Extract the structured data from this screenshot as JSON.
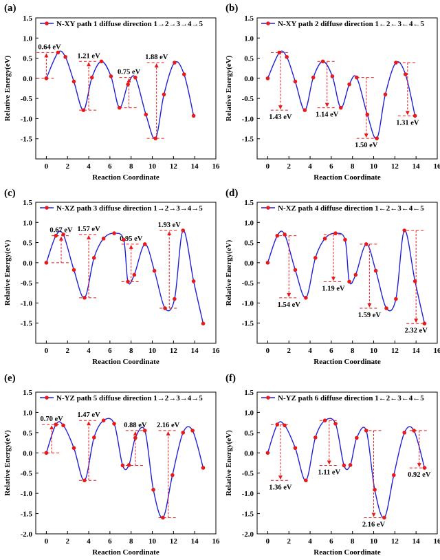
{
  "panels": [
    {
      "letter": "(a)",
      "legend": "N-XY path 1 diffuse direction 1→2→3→4→5"
    },
    {
      "letter": "(b)",
      "legend": "N-XY path 2 diffuse direction 1←2←3←4←5"
    },
    {
      "letter": "(c)",
      "legend": "N-XZ path 3 diffuse direction 1→2→3→4→5"
    },
    {
      "letter": "(d)",
      "legend": "N-XZ path 4 diffuse direction 1←2←3←4←5"
    },
    {
      "letter": "(e)",
      "legend": "N-YZ path 5 diffuse direction 1→2→3→4→5"
    },
    {
      "letter": "(f)",
      "legend": "N-YZ path 6 diffuse direction 1←2←3←4←5"
    }
  ],
  "colors": {
    "line": "#1f1fd6",
    "marker": "#e8191a",
    "annotation": "#e8191a",
    "axis": "#000000"
  },
  "chart_data": [
    {
      "type": "line",
      "legend": "N-XY path 1 diffuse direction 1→2→3→4→5",
      "xlabel": "Reaction Coordinate",
      "ylabel": "Relative Energy(eV)",
      "xlim": [
        -1,
        16
      ],
      "ylim": [
        -2.0,
        1.5
      ],
      "x_ticks": [
        0,
        2,
        4,
        6,
        8,
        10,
        12,
        14,
        16
      ],
      "y_ticks": [
        -1.5,
        -1.0,
        -0.5,
        0.0,
        0.5,
        1.0,
        1.5
      ],
      "points": {
        "x": [
          0,
          1.1,
          1.8,
          2.6,
          3.5,
          4.3,
          5.2,
          6.1,
          6.9,
          7.7,
          8.4,
          9.4,
          10.3,
          11.1,
          12.1,
          13.0,
          13.9
        ],
        "y": [
          0.0,
          0.64,
          0.53,
          -0.08,
          -0.79,
          0.02,
          0.42,
          0.05,
          -0.73,
          -0.15,
          0.02,
          -0.9,
          -1.49,
          -0.4,
          0.39,
          0.1,
          -0.93
        ]
      },
      "annotations": [
        {
          "label": "0.64 eV",
          "x": 0.0,
          "from": 0.0,
          "to": 0.64,
          "dir": "up"
        },
        {
          "label": "1.21 eV",
          "x": 4.0,
          "from": -0.79,
          "to": 0.42,
          "dir": "up"
        },
        {
          "label": "0.75 eV",
          "x": 7.8,
          "from": -0.73,
          "to": 0.02,
          "dir": "up"
        },
        {
          "label": "1.88 eV",
          "x": 10.4,
          "from": -1.49,
          "to": 0.39,
          "dir": "up"
        }
      ]
    },
    {
      "type": "line",
      "legend": "N-XY path 2 diffuse direction 1←2←3←4←5",
      "xlabel": "Reaction Coordinate",
      "ylabel": "Relative Energy(eV)",
      "xlim": [
        -1,
        16
      ],
      "ylim": [
        -2.0,
        1.5
      ],
      "x_ticks": [
        0,
        2,
        4,
        6,
        8,
        10,
        12,
        14,
        16
      ],
      "y_ticks": [
        -1.5,
        -1.0,
        -0.5,
        0.0,
        0.5,
        1.0,
        1.5
      ],
      "points": {
        "x": [
          0,
          1.1,
          1.8,
          2.6,
          3.5,
          4.3,
          5.2,
          6.1,
          6.9,
          7.7,
          8.4,
          9.4,
          10.3,
          11.1,
          12.1,
          13.0,
          13.9
        ],
        "y": [
          0.0,
          0.64,
          0.53,
          -0.08,
          -0.79,
          0.02,
          0.42,
          0.05,
          -0.73,
          -0.15,
          0.02,
          -0.9,
          -1.49,
          -0.4,
          0.39,
          0.1,
          -0.93
        ]
      },
      "annotations": [
        {
          "label": "1.43 eV",
          "x": 1.2,
          "from": 0.64,
          "to": -0.79,
          "dir": "down"
        },
        {
          "label": "1.14 eV",
          "x": 5.6,
          "from": 0.42,
          "to": -0.73,
          "dir": "down"
        },
        {
          "label": "1.50 eV",
          "x": 9.3,
          "from": 0.02,
          "to": -1.49,
          "dir": "down"
        },
        {
          "label": "1.31 eV",
          "x": 13.2,
          "from": 0.39,
          "to": -0.93,
          "dir": "down"
        }
      ]
    },
    {
      "type": "line",
      "legend": "N-XZ path 3 diffuse direction 1→2→3→4→5",
      "xlabel": "Reaction Coordinate",
      "ylabel": "Relative Energy(eV)",
      "xlim": [
        -1,
        16
      ],
      "ylim": [
        -2.0,
        1.5
      ],
      "x_ticks": [
        0,
        2,
        4,
        6,
        8,
        10,
        12,
        14,
        16
      ],
      "y_ticks": [
        -1.5,
        -1.0,
        -0.5,
        0.0,
        0.5,
        1.0,
        1.5
      ],
      "points": {
        "x": [
          0,
          0.9,
          1.6,
          2.6,
          3.6,
          4.5,
          5.4,
          6.4,
          7.3,
          7.7,
          8.3,
          9.3,
          10.2,
          11.2,
          12.1,
          12.9,
          13.9,
          14.8
        ],
        "y": [
          0.0,
          0.67,
          0.7,
          -0.18,
          -0.87,
          0.12,
          0.6,
          0.73,
          0.57,
          -0.47,
          -0.3,
          0.46,
          -0.2,
          -1.13,
          -0.9,
          0.8,
          -0.46,
          -1.51
        ]
      },
      "annotations": [
        {
          "label": "0.67 eV",
          "x": 1.4,
          "from": 0.0,
          "to": 0.67,
          "dir": "up"
        },
        {
          "label": "1.57 eV",
          "x": 4.0,
          "from": -0.87,
          "to": 0.7,
          "dir": "up"
        },
        {
          "label": "0.95 eV",
          "x": 8.0,
          "from": -0.47,
          "to": 0.46,
          "dir": "up"
        },
        {
          "label": "1.93 eV",
          "x": 11.6,
          "from": -1.13,
          "to": 0.8,
          "dir": "up"
        }
      ]
    },
    {
      "type": "line",
      "legend": "N-XZ path 4 diffuse direction 1←2←3←4←5",
      "xlabel": "Reaction Coordinate",
      "ylabel": "Relative Energy(eV)",
      "xlim": [
        -1,
        16
      ],
      "ylim": [
        -2.0,
        1.5
      ],
      "x_ticks": [
        0,
        2,
        4,
        6,
        8,
        10,
        12,
        14,
        16
      ],
      "y_ticks": [
        -1.5,
        -1.0,
        -0.5,
        0.0,
        0.5,
        1.0,
        1.5
      ],
      "points": {
        "x": [
          0,
          0.9,
          1.6,
          2.6,
          3.6,
          4.5,
          5.4,
          6.4,
          7.3,
          7.7,
          8.3,
          9.3,
          10.2,
          11.2,
          12.1,
          12.9,
          13.9,
          14.8
        ],
        "y": [
          0.0,
          0.67,
          0.7,
          -0.18,
          -0.87,
          0.12,
          0.6,
          0.73,
          0.57,
          -0.47,
          -0.3,
          0.46,
          -0.2,
          -1.13,
          -0.9,
          0.8,
          -0.46,
          -1.51
        ]
      },
      "annotations": [
        {
          "label": "1.54 eV",
          "x": 2.0,
          "from": 0.67,
          "to": -0.87,
          "dir": "down"
        },
        {
          "label": "1.19 eV",
          "x": 6.2,
          "from": 0.7,
          "to": -0.47,
          "dir": "down"
        },
        {
          "label": "1.59 eV",
          "x": 9.6,
          "from": 0.46,
          "to": -1.13,
          "dir": "down"
        },
        {
          "label": "2.32 eV",
          "x": 14.0,
          "from": 0.8,
          "to": -1.51,
          "dir": "down"
        }
      ]
    },
    {
      "type": "line",
      "legend": "N-YZ path 5 diffuse direction 1→2→3→4→5",
      "xlabel": "Reaction Coordinate",
      "ylabel": "Relative Energy(eV)",
      "xlim": [
        -1,
        16
      ],
      "ylim": [
        -2.0,
        1.5
      ],
      "x_ticks": [
        0,
        2,
        4,
        6,
        8,
        10,
        12,
        14,
        16
      ],
      "y_ticks": [
        -2.0,
        -1.5,
        -1.0,
        -0.5,
        0.0,
        0.5,
        1.0,
        1.5
      ],
      "points": {
        "x": [
          0,
          0.9,
          1.6,
          2.6,
          3.6,
          4.5,
          5.4,
          6.4,
          7.2,
          7.8,
          8.4,
          9.3,
          10.1,
          11.0,
          11.9,
          12.9,
          13.8,
          14.8
        ],
        "y": [
          0.0,
          0.7,
          0.68,
          0.12,
          -0.68,
          0.38,
          0.8,
          0.72,
          -0.31,
          -0.3,
          0.37,
          0.55,
          -0.91,
          -1.6,
          -0.55,
          0.5,
          0.55,
          -0.37
        ]
      },
      "annotations": [
        {
          "label": "0.70 eV",
          "x": 0.5,
          "from": 0.0,
          "to": 0.7,
          "dir": "up"
        },
        {
          "label": "1.47 eV",
          "x": 4.0,
          "from": -0.68,
          "to": 0.8,
          "dir": "up"
        },
        {
          "label": "0.88 eV",
          "x": 8.4,
          "from": -0.31,
          "to": 0.55,
          "dir": "up"
        },
        {
          "label": "2.16 eV",
          "x": 11.5,
          "from": -1.6,
          "to": 0.55,
          "dir": "up"
        }
      ]
    },
    {
      "type": "line",
      "legend": "N-YZ path 6 diffuse direction 1←2←3←4←5",
      "xlabel": "Reaction Coordinate",
      "ylabel": "Relative Energy(eV)",
      "xlim": [
        -1,
        16
      ],
      "ylim": [
        -2.0,
        1.5
      ],
      "x_ticks": [
        0,
        2,
        4,
        6,
        8,
        10,
        12,
        14,
        16
      ],
      "y_ticks": [
        -2.0,
        -1.5,
        -1.0,
        -0.5,
        0.0,
        0.5,
        1.0,
        1.5
      ],
      "points": {
        "x": [
          0,
          0.9,
          1.6,
          2.6,
          3.6,
          4.5,
          5.4,
          6.4,
          7.2,
          7.8,
          8.4,
          9.3,
          10.1,
          11.0,
          11.9,
          12.9,
          13.8,
          14.8
        ],
        "y": [
          0.0,
          0.7,
          0.68,
          0.12,
          -0.68,
          0.38,
          0.8,
          0.72,
          -0.31,
          -0.3,
          0.37,
          0.55,
          -0.91,
          -1.6,
          -0.55,
          0.5,
          0.55,
          -0.37
        ]
      },
      "annotations": [
        {
          "label": "1.36 eV",
          "x": 1.2,
          "from": 0.7,
          "to": -0.68,
          "dir": "down"
        },
        {
          "label": "1.11 eV",
          "x": 5.8,
          "from": 0.8,
          "to": -0.31,
          "dir": "down"
        },
        {
          "label": "2.16 eV",
          "x": 10.0,
          "from": 0.55,
          "to": -1.6,
          "dir": "down"
        },
        {
          "label": "0.92 eV",
          "x": 14.3,
          "from": 0.55,
          "to": -0.37,
          "dir": "down"
        }
      ]
    }
  ]
}
